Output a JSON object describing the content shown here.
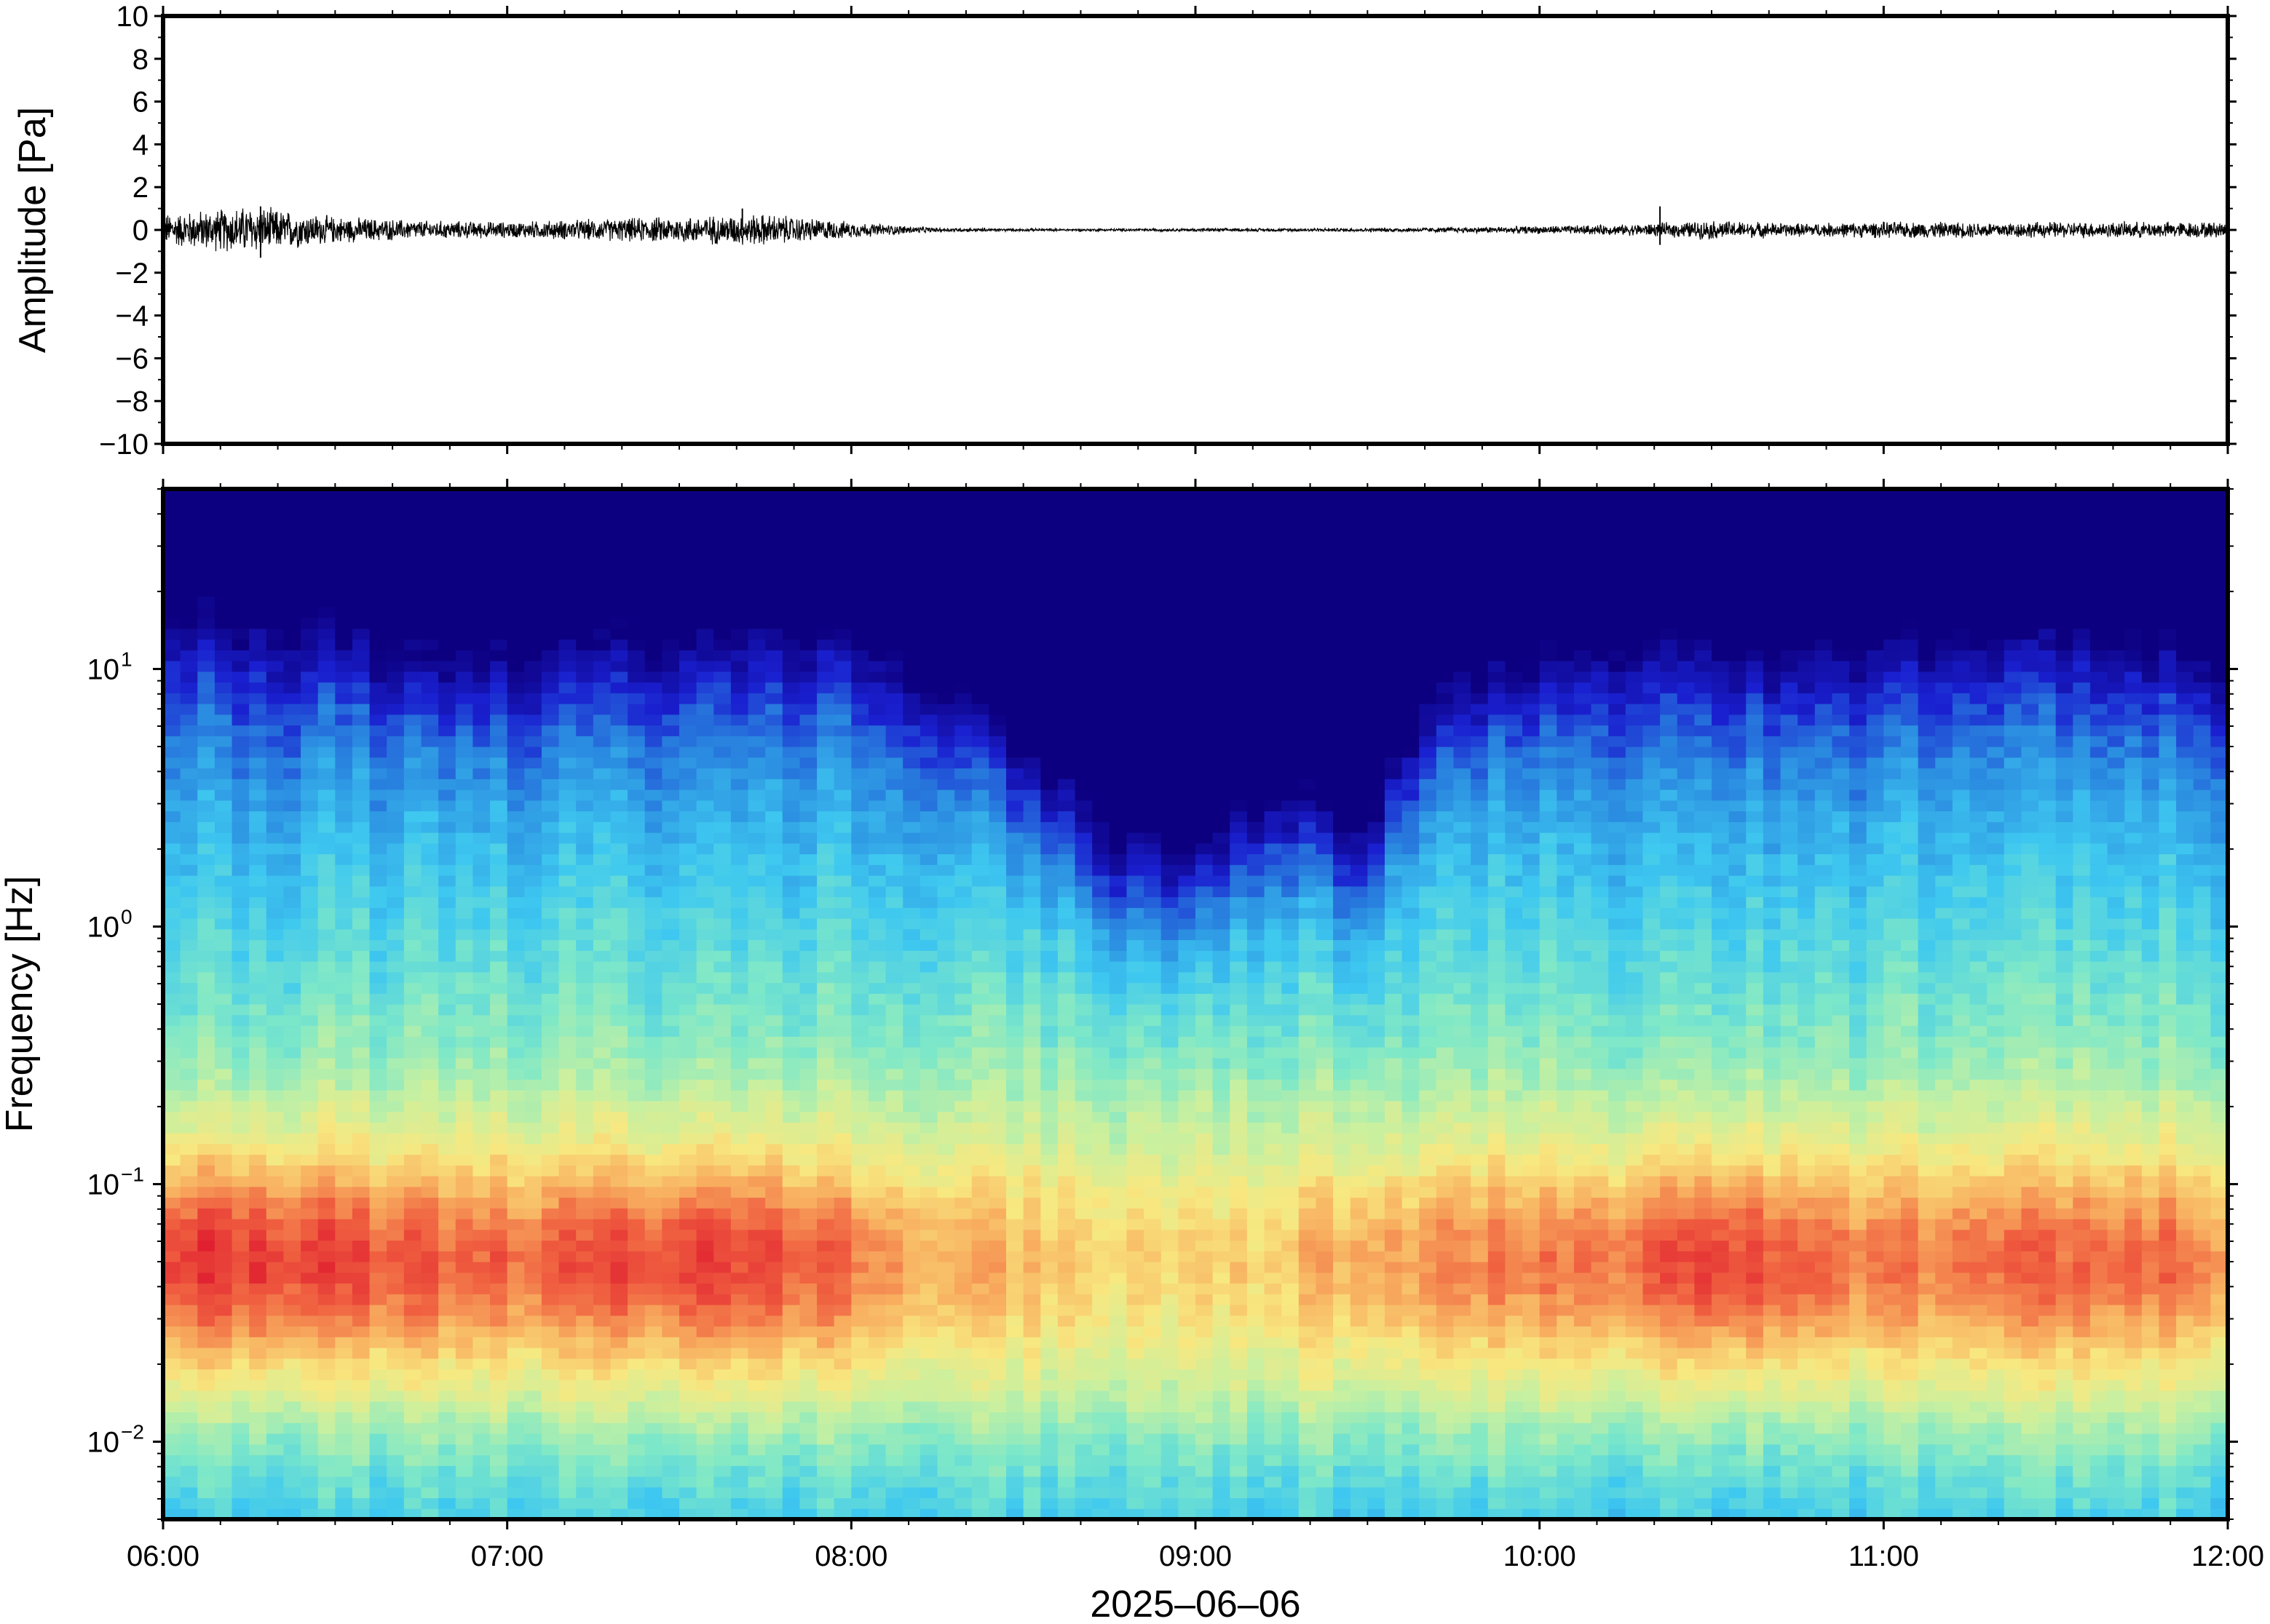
{
  "chart_data": [
    {
      "type": "line",
      "panel": "waveform",
      "ylabel": "Amplitude [Pa]",
      "ylim": [
        -10,
        10
      ],
      "yticks": [
        -10,
        -8,
        -6,
        -4,
        -2,
        0,
        2,
        4,
        6,
        8,
        10
      ],
      "ytick_labels": [
        "−10",
        "−8",
        "−6",
        "−4",
        "−2",
        "0",
        "2",
        "4",
        "6",
        "8",
        "10"
      ],
      "xlim": [
        "06:00",
        "12:00"
      ],
      "series": [
        {
          "color": "#000000",
          "x": [
            "06:00",
            "06:15",
            "06:30",
            "06:45",
            "07:00",
            "07:15",
            "07:30",
            "07:45",
            "08:00",
            "08:15",
            "08:30",
            "08:45",
            "09:00",
            "09:15",
            "09:30",
            "09:45",
            "10:00",
            "10:15",
            "10:30",
            "10:45",
            "11:00",
            "11:15",
            "11:30",
            "11:45",
            "12:00"
          ],
          "envelope": [
            0.6,
            0.9,
            0.5,
            0.35,
            0.3,
            0.4,
            0.5,
            0.6,
            0.3,
            0.08,
            0.05,
            0.05,
            0.06,
            0.06,
            0.07,
            0.1,
            0.15,
            0.2,
            0.35,
            0.25,
            0.3,
            0.3,
            0.3,
            0.3,
            0.3
          ],
          "spikes": [
            {
              "x": "06:17",
              "y": 1.1
            },
            {
              "x": "06:17",
              "y": -1.3
            },
            {
              "x": "07:41",
              "y": 1.0
            },
            {
              "x": "10:21",
              "y": 1.1
            },
            {
              "x": "10:21",
              "y": -0.7
            }
          ]
        }
      ]
    },
    {
      "type": "heatmap",
      "panel": "spectrogram",
      "ylabel": "Frequency [Hz]",
      "xlabel": "2025–06–06",
      "yscale": "log",
      "ylim": [
        0.005,
        50
      ],
      "yticks": [
        0.01,
        0.1,
        1,
        10
      ],
      "ytick_labels": [
        {
          "base": "10",
          "exp": "−2"
        },
        {
          "base": "10",
          "exp": "−1"
        },
        {
          "base": "10",
          "exp": "0"
        },
        {
          "base": "10",
          "exp": "1"
        }
      ],
      "xticks": [
        "06:00",
        "07:00",
        "08:00",
        "09:00",
        "10:00",
        "11:00",
        "12:00"
      ],
      "colormap": [
        "#0d0080",
        "#1a20d0",
        "#2a8ae0",
        "#3ec8f0",
        "#7ee8c8",
        "#c8f0a0",
        "#f8e880",
        "#f8b060",
        "#f06040",
        "#e02030"
      ],
      "note_columns_x": [
        "06:00",
        "06:15",
        "06:30",
        "06:45",
        "07:00",
        "07:15",
        "07:30",
        "07:45",
        "08:00",
        "08:15",
        "08:30",
        "08:45",
        "09:00",
        "09:15",
        "09:30",
        "09:45",
        "10:00",
        "10:15",
        "10:30",
        "10:45",
        "11:00",
        "11:15",
        "11:30",
        "11:45",
        "12:00"
      ],
      "cutoff_hz": [
        30,
        25,
        22,
        16,
        17,
        19,
        20,
        22,
        20,
        12,
        5,
        2,
        1.5,
        3.5,
        2,
        12,
        16,
        20,
        19,
        18,
        19,
        20,
        20,
        18,
        16
      ],
      "microbarom_level": [
        0.95,
        0.98,
        0.9,
        0.82,
        0.8,
        0.85,
        0.92,
        0.9,
        0.75,
        0.6,
        0.52,
        0.45,
        0.4,
        0.5,
        0.62,
        0.7,
        0.72,
        0.8,
        0.95,
        0.85,
        0.72,
        0.75,
        0.78,
        0.78,
        0.7
      ],
      "x_axis_range": [
        "06:00",
        "12:00"
      ]
    }
  ]
}
